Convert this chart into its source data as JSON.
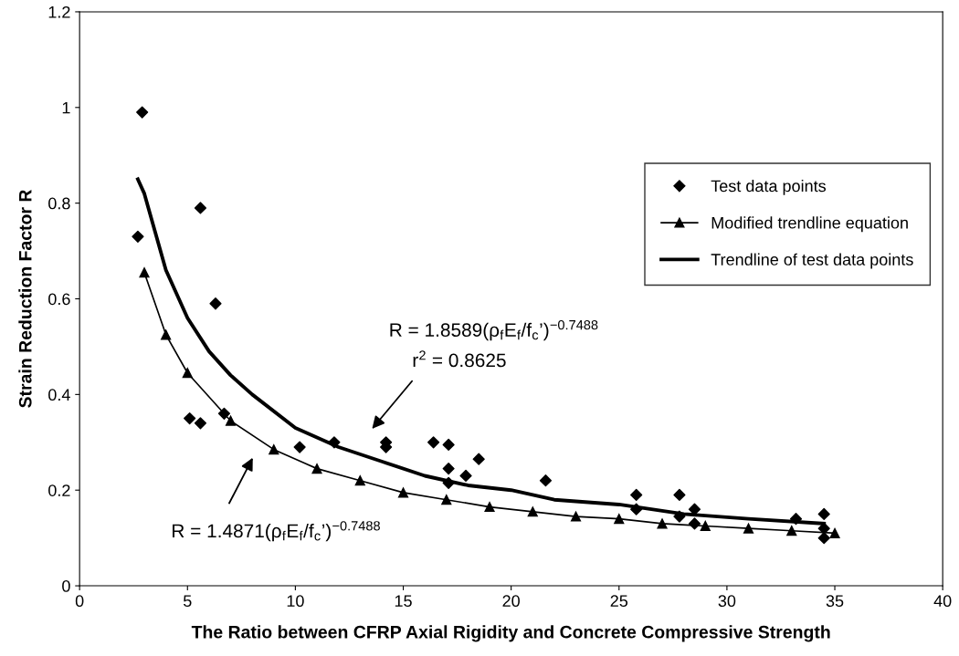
{
  "chart_data": {
    "type": "scatter",
    "xlabel": "The Ratio between CFRP Axial Rigidity and Concrete Compressive Strength",
    "ylabel": "Strain Reduction Factor R",
    "xlim": [
      0,
      40
    ],
    "xticks": [
      0,
      5,
      10,
      15,
      20,
      25,
      30,
      35,
      40
    ],
    "ylim": [
      0,
      1.2
    ],
    "yticks": [
      0,
      0.2,
      0.4,
      0.6,
      0.8,
      1,
      1.2
    ],
    "grid": false,
    "legend": "right",
    "series": [
      {
        "name": "Test data points",
        "marker": "diamond",
        "color": "#000000",
        "x": [
          2.9,
          5.6,
          2.7,
          6.3,
          5.1,
          5.6,
          6.7,
          10.2,
          11.8,
          14.2,
          14.2,
          16.4,
          17.1,
          17.1,
          17.1,
          17.9,
          18.5,
          21.6,
          25.8,
          25.8,
          27.8,
          27.8,
          28.5,
          28.5,
          33.2,
          34.5,
          34.5,
          34.5
        ],
        "values": [
          0.99,
          0.79,
          0.73,
          0.59,
          0.35,
          0.34,
          0.36,
          0.29,
          0.3,
          0.3,
          0.29,
          0.3,
          0.295,
          0.245,
          0.215,
          0.23,
          0.265,
          0.22,
          0.19,
          0.16,
          0.19,
          0.145,
          0.16,
          0.13,
          0.14,
          0.15,
          0.12,
          0.1
        ]
      },
      {
        "name": "Modified trendline equation",
        "type": "line",
        "marker": "triangle",
        "line_style": "solid",
        "color": "#000000",
        "x": [
          3,
          4,
          5,
          7,
          9,
          11,
          13,
          15,
          17,
          19,
          21,
          23,
          25,
          27,
          29,
          31,
          33,
          35
        ],
        "values": [
          0.655,
          0.525,
          0.445,
          0.345,
          0.285,
          0.245,
          0.22,
          0.195,
          0.18,
          0.165,
          0.155,
          0.145,
          0.14,
          0.13,
          0.125,
          0.12,
          0.115,
          0.11
        ]
      },
      {
        "name": "Trendline of test data points",
        "type": "line",
        "marker": "none",
        "line_style": "solid",
        "color": "#000000",
        "x": [
          2.7,
          3,
          4,
          5,
          6,
          7,
          8,
          10,
          12,
          14,
          16,
          18,
          20,
          22,
          25,
          28,
          31,
          34.5
        ],
        "values": [
          0.85,
          0.82,
          0.66,
          0.56,
          0.49,
          0.44,
          0.4,
          0.33,
          0.29,
          0.26,
          0.23,
          0.21,
          0.2,
          0.18,
          0.17,
          0.15,
          0.14,
          0.13
        ]
      }
    ],
    "annotations": [
      "R = 1.8589(ρ$_{f}$E$_{f}$/f$_{c}$’)$^{−0.7488}$",
      "r$^{2}$ = 0.8625",
      "R = 1.4871(ρ$_{f}$E$_{f}$/f$_{c}$’)$^{−0.7488}$"
    ]
  }
}
